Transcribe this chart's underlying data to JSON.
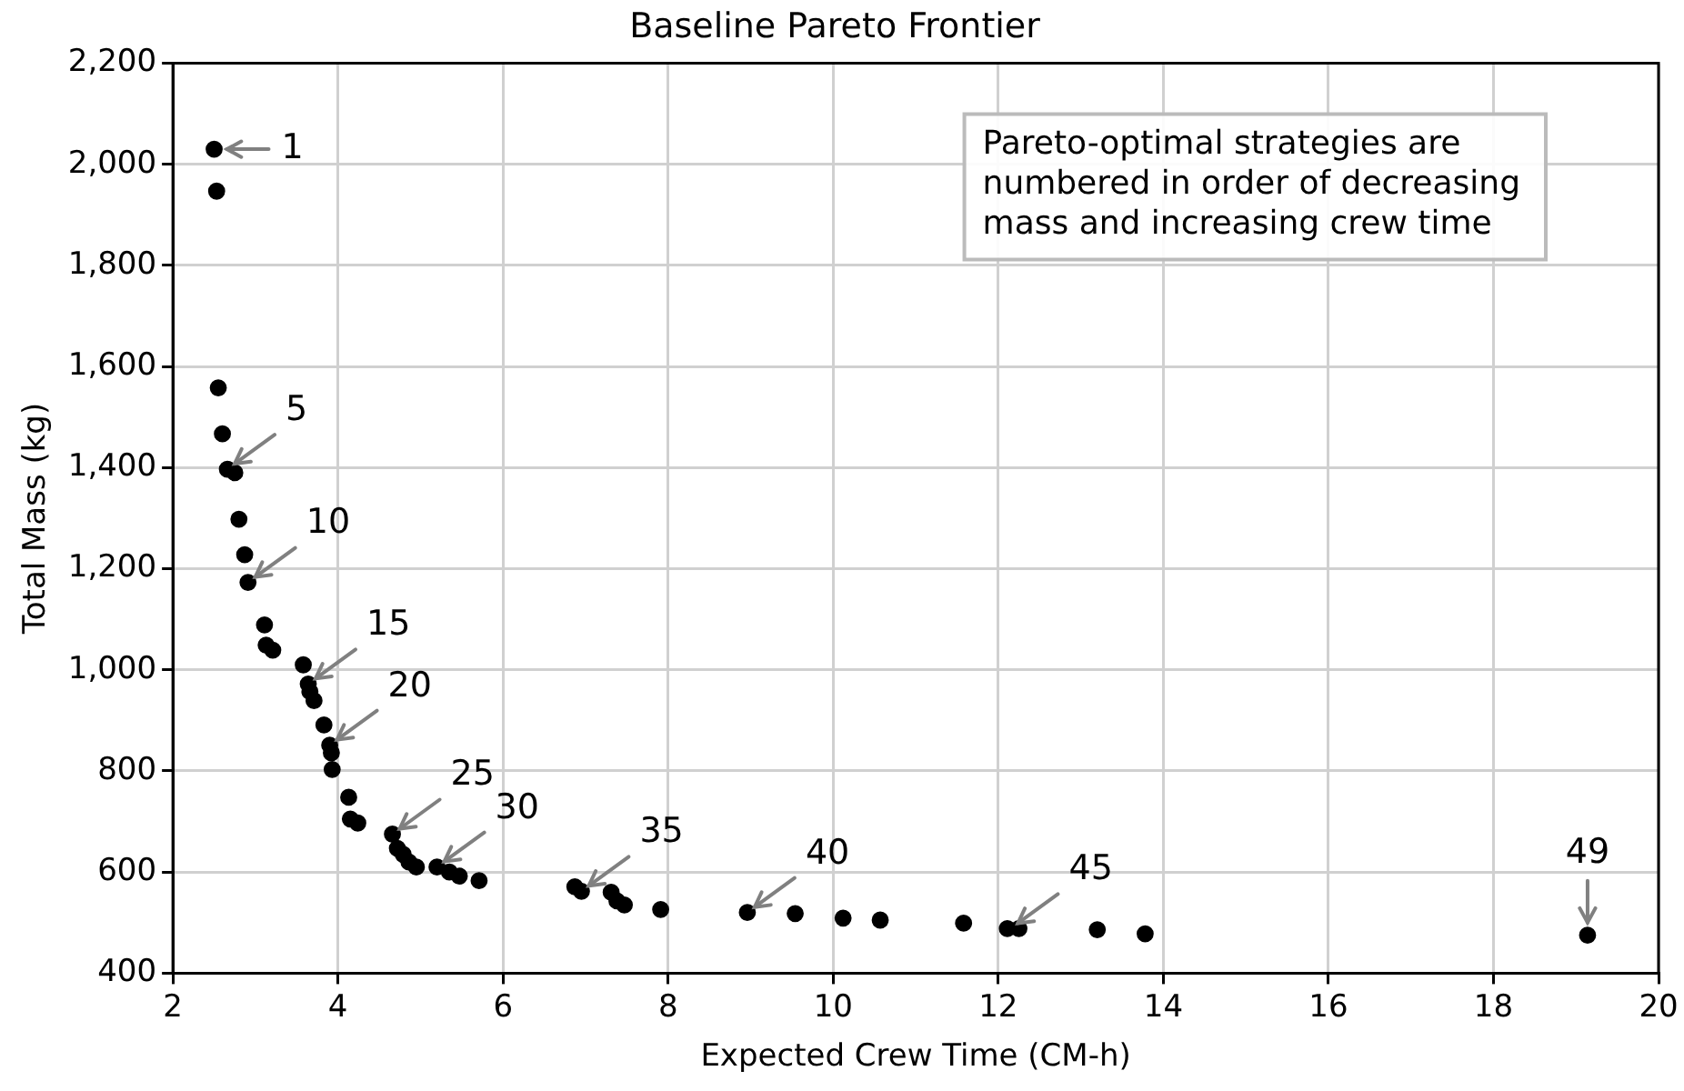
{
  "chart_data": {
    "type": "scatter",
    "title": "Baseline Pareto Frontier",
    "xlabel": "Expected Crew Time (CM-h)",
    "ylabel": "Total Mass (kg)",
    "x": [
      2.5,
      2.53,
      2.55,
      2.6,
      2.66,
      2.75,
      2.8,
      2.87,
      2.91,
      3.11,
      3.13,
      3.21,
      3.58,
      3.64,
      3.66,
      3.71,
      3.83,
      3.9,
      3.92,
      3.93,
      4.13,
      4.15,
      4.24,
      4.66,
      4.72,
      4.79,
      4.86,
      4.95,
      5.2,
      5.35,
      5.47,
      5.71,
      6.87,
      6.95,
      7.31,
      7.38,
      7.47,
      7.91,
      8.96,
      9.54,
      10.12,
      10.57,
      11.58,
      12.11,
      12.25,
      13.2,
      13.78,
      19.14
    ],
    "series": [
      {
        "color": "#000000",
        "values": [
          2030,
          1947,
          1558,
          1467,
          1397,
          1390,
          1298,
          1228,
          1173,
          1089,
          1049,
          1039,
          1010,
          972,
          957,
          939,
          891,
          851,
          836,
          803,
          748,
          705,
          697,
          675,
          647,
          635,
          620,
          610,
          610,
          600,
          592,
          583,
          571,
          562,
          560,
          543,
          535,
          526,
          520,
          518,
          509,
          505,
          499,
          488,
          488,
          486,
          478,
          475
        ]
      }
    ],
    "xlim": [
      2,
      20
    ],
    "xticks": [
      2,
      4,
      6,
      8,
      10,
      12,
      14,
      16,
      18,
      20
    ],
    "ylim": [
      400,
      2200
    ],
    "yticks": [
      {
        "value": 400,
        "label": "400"
      },
      {
        "value": 600,
        "label": "600"
      },
      {
        "value": 800,
        "label": "800"
      },
      {
        "value": 1000,
        "label": "1,000"
      },
      {
        "value": 1200,
        "label": "1,200"
      },
      {
        "value": 1400,
        "label": "1,400"
      },
      {
        "value": 1600,
        "label": "1,600"
      },
      {
        "value": 1800,
        "label": "1,800"
      },
      {
        "value": 2000,
        "label": "2,000"
      },
      {
        "value": 2200,
        "label": "2,200"
      }
    ],
    "grid": true,
    "legend": false,
    "marker": "circle",
    "annotations": [
      {
        "text": "1",
        "x": 2.5,
        "y": 2030
      },
      {
        "text": "5",
        "x": 2.66,
        "y": 1397
      },
      {
        "text": "10",
        "x": 2.91,
        "y": 1173
      },
      {
        "text": "15",
        "x": 3.64,
        "y": 972
      },
      {
        "text": "20",
        "x": 3.9,
        "y": 851
      },
      {
        "text": "25",
        "x": 4.66,
        "y": 675
      },
      {
        "text": "30",
        "x": 5.2,
        "y": 610
      },
      {
        "text": "35",
        "x": 6.95,
        "y": 562
      },
      {
        "text": "40",
        "x": 8.96,
        "y": 520
      },
      {
        "text": "45",
        "x": 12.15,
        "y": 488
      },
      {
        "text": "49",
        "x": 19.14,
        "y": 475
      },
      "Pareto-optimal strategies are\nnumbered in order of decreasing\nmass and increasing crew time"
    ]
  }
}
